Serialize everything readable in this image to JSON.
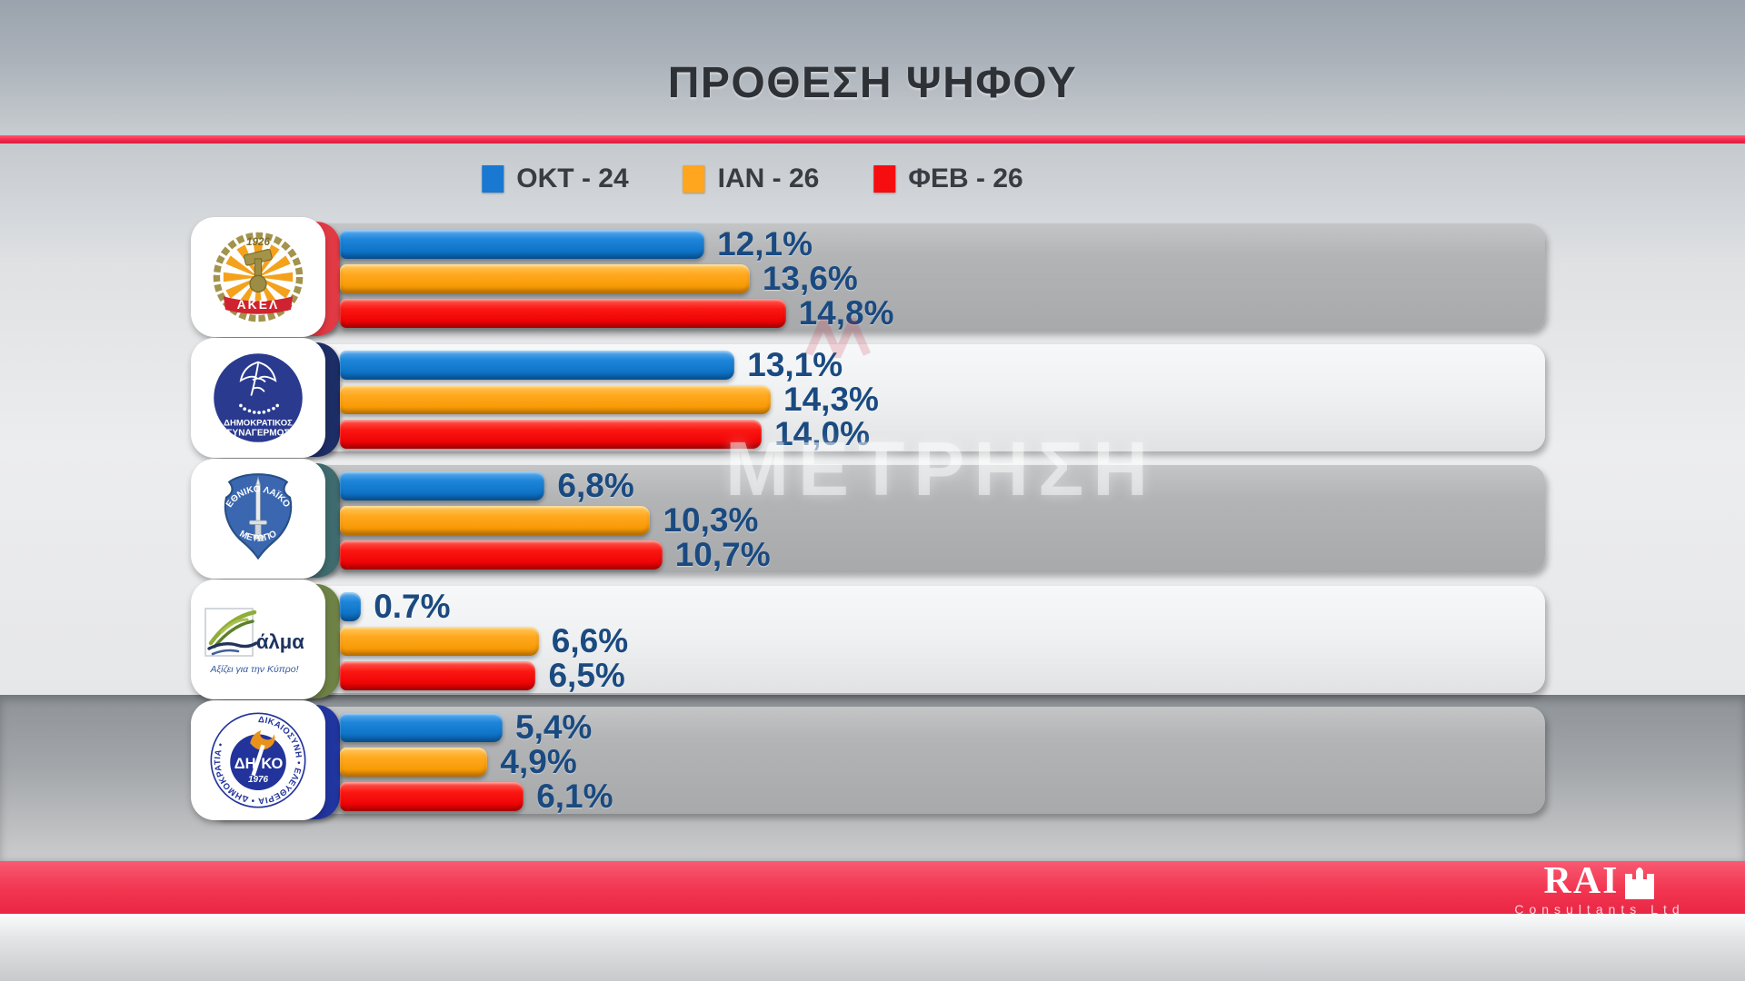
{
  "header": {
    "title": "ΠΡΟΘΕΣΗ ΨΗΦΟΥ"
  },
  "legend": [
    {
      "key": "okt-24",
      "label": "ΟΚΤ - 24",
      "color": "#1878d2"
    },
    {
      "key": "ian-26",
      "label": "ΙΑΝ - 26",
      "color": "#ffa51e"
    },
    {
      "key": "fev-26",
      "label": "ΦΕΒ - 26",
      "color": "#f60d10"
    }
  ],
  "watermark": {
    "text": "ΜΕΤΡΗΣΗ"
  },
  "footer": {
    "brand": "RAI",
    "brand_sub": "Consultants Ltd",
    "band_color": "#f23550"
  },
  "chart_data": {
    "type": "bar",
    "orientation": "horizontal",
    "title": "ΠΡΟΘΕΣΗ ΨΗΦΟΥ",
    "value_unit": "%",
    "scale_max": 40,
    "legend_position": "top",
    "grid": false,
    "series": [
      "ΟΚΤ - 24",
      "ΙΑΝ - 26",
      "ΦΕΒ - 26"
    ],
    "series_colors": [
      "#1878d2",
      "#ffa51e",
      "#f60d10"
    ],
    "parties": [
      {
        "id": "akel",
        "name": "ΑΚΕΛ",
        "values": [
          12.1,
          13.6,
          14.8
        ],
        "labels": [
          "12,1%",
          "13,6%",
          "14,8%"
        ],
        "accent": "#e23a44",
        "panel": "gray",
        "logo": {
          "year": "1926",
          "banner": "ΑΚΕΛ"
        }
      },
      {
        "id": "disy",
        "name": "ΔΗΜΟΚΡΑΤΙΚΟΣ ΣΥΝΑΓΕΡΜΟΣ",
        "values": [
          13.1,
          14.3,
          14.0
        ],
        "labels": [
          "13,1%",
          "14,3%",
          "14,0%"
        ],
        "accent": "#1d2d66",
        "panel": "light",
        "logo": {
          "line1": "ΔΗΜΟΚΡΑΤΙΚΟΣ",
          "line2": "ΣΥΝΑΓΕΡΜΟΣ"
        }
      },
      {
        "id": "elam",
        "name": "ΕΘΝΙΚΟ ΛΑΪΚΟ ΜΕΤΩΠΟ",
        "values": [
          6.8,
          10.3,
          10.7
        ],
        "labels": [
          "6,8%",
          "10,3%",
          "10,7%"
        ],
        "accent": "#3f6b6e",
        "panel": "gray",
        "logo": {
          "top": "ΕΘΝΙΚΟ ΛΑΪΚΟ",
          "bottom": "ΜΕΤΩΠΟ"
        }
      },
      {
        "id": "alma",
        "name": "ΑΛΜΑ",
        "values": [
          0.7,
          6.6,
          6.5
        ],
        "labels": [
          "0.7%",
          "6,6%",
          "6,5%"
        ],
        "accent": "#6f8246",
        "panel": "light",
        "logo": {
          "word": "άλμα",
          "tagline": "Αξίζει για την Κύπρο!"
        }
      },
      {
        "id": "diko",
        "name": "ΔΗΚΟ",
        "values": [
          5.4,
          4.9,
          6.1
        ],
        "labels": [
          "5,4%",
          "4,9%",
          "6,1%"
        ],
        "accent": "#2135a0",
        "panel": "gray",
        "logo": {
          "center_left": "ΔΗ",
          "center_right": "ΚΟ",
          "year": "1976",
          "ring": "ΔΙΚΑΙΟΣΥΝΗ • ΕΛΕΥΘΕΡΙΑ • ΔΗΜΟΚΡΑΤΙΑ •"
        }
      }
    ]
  }
}
